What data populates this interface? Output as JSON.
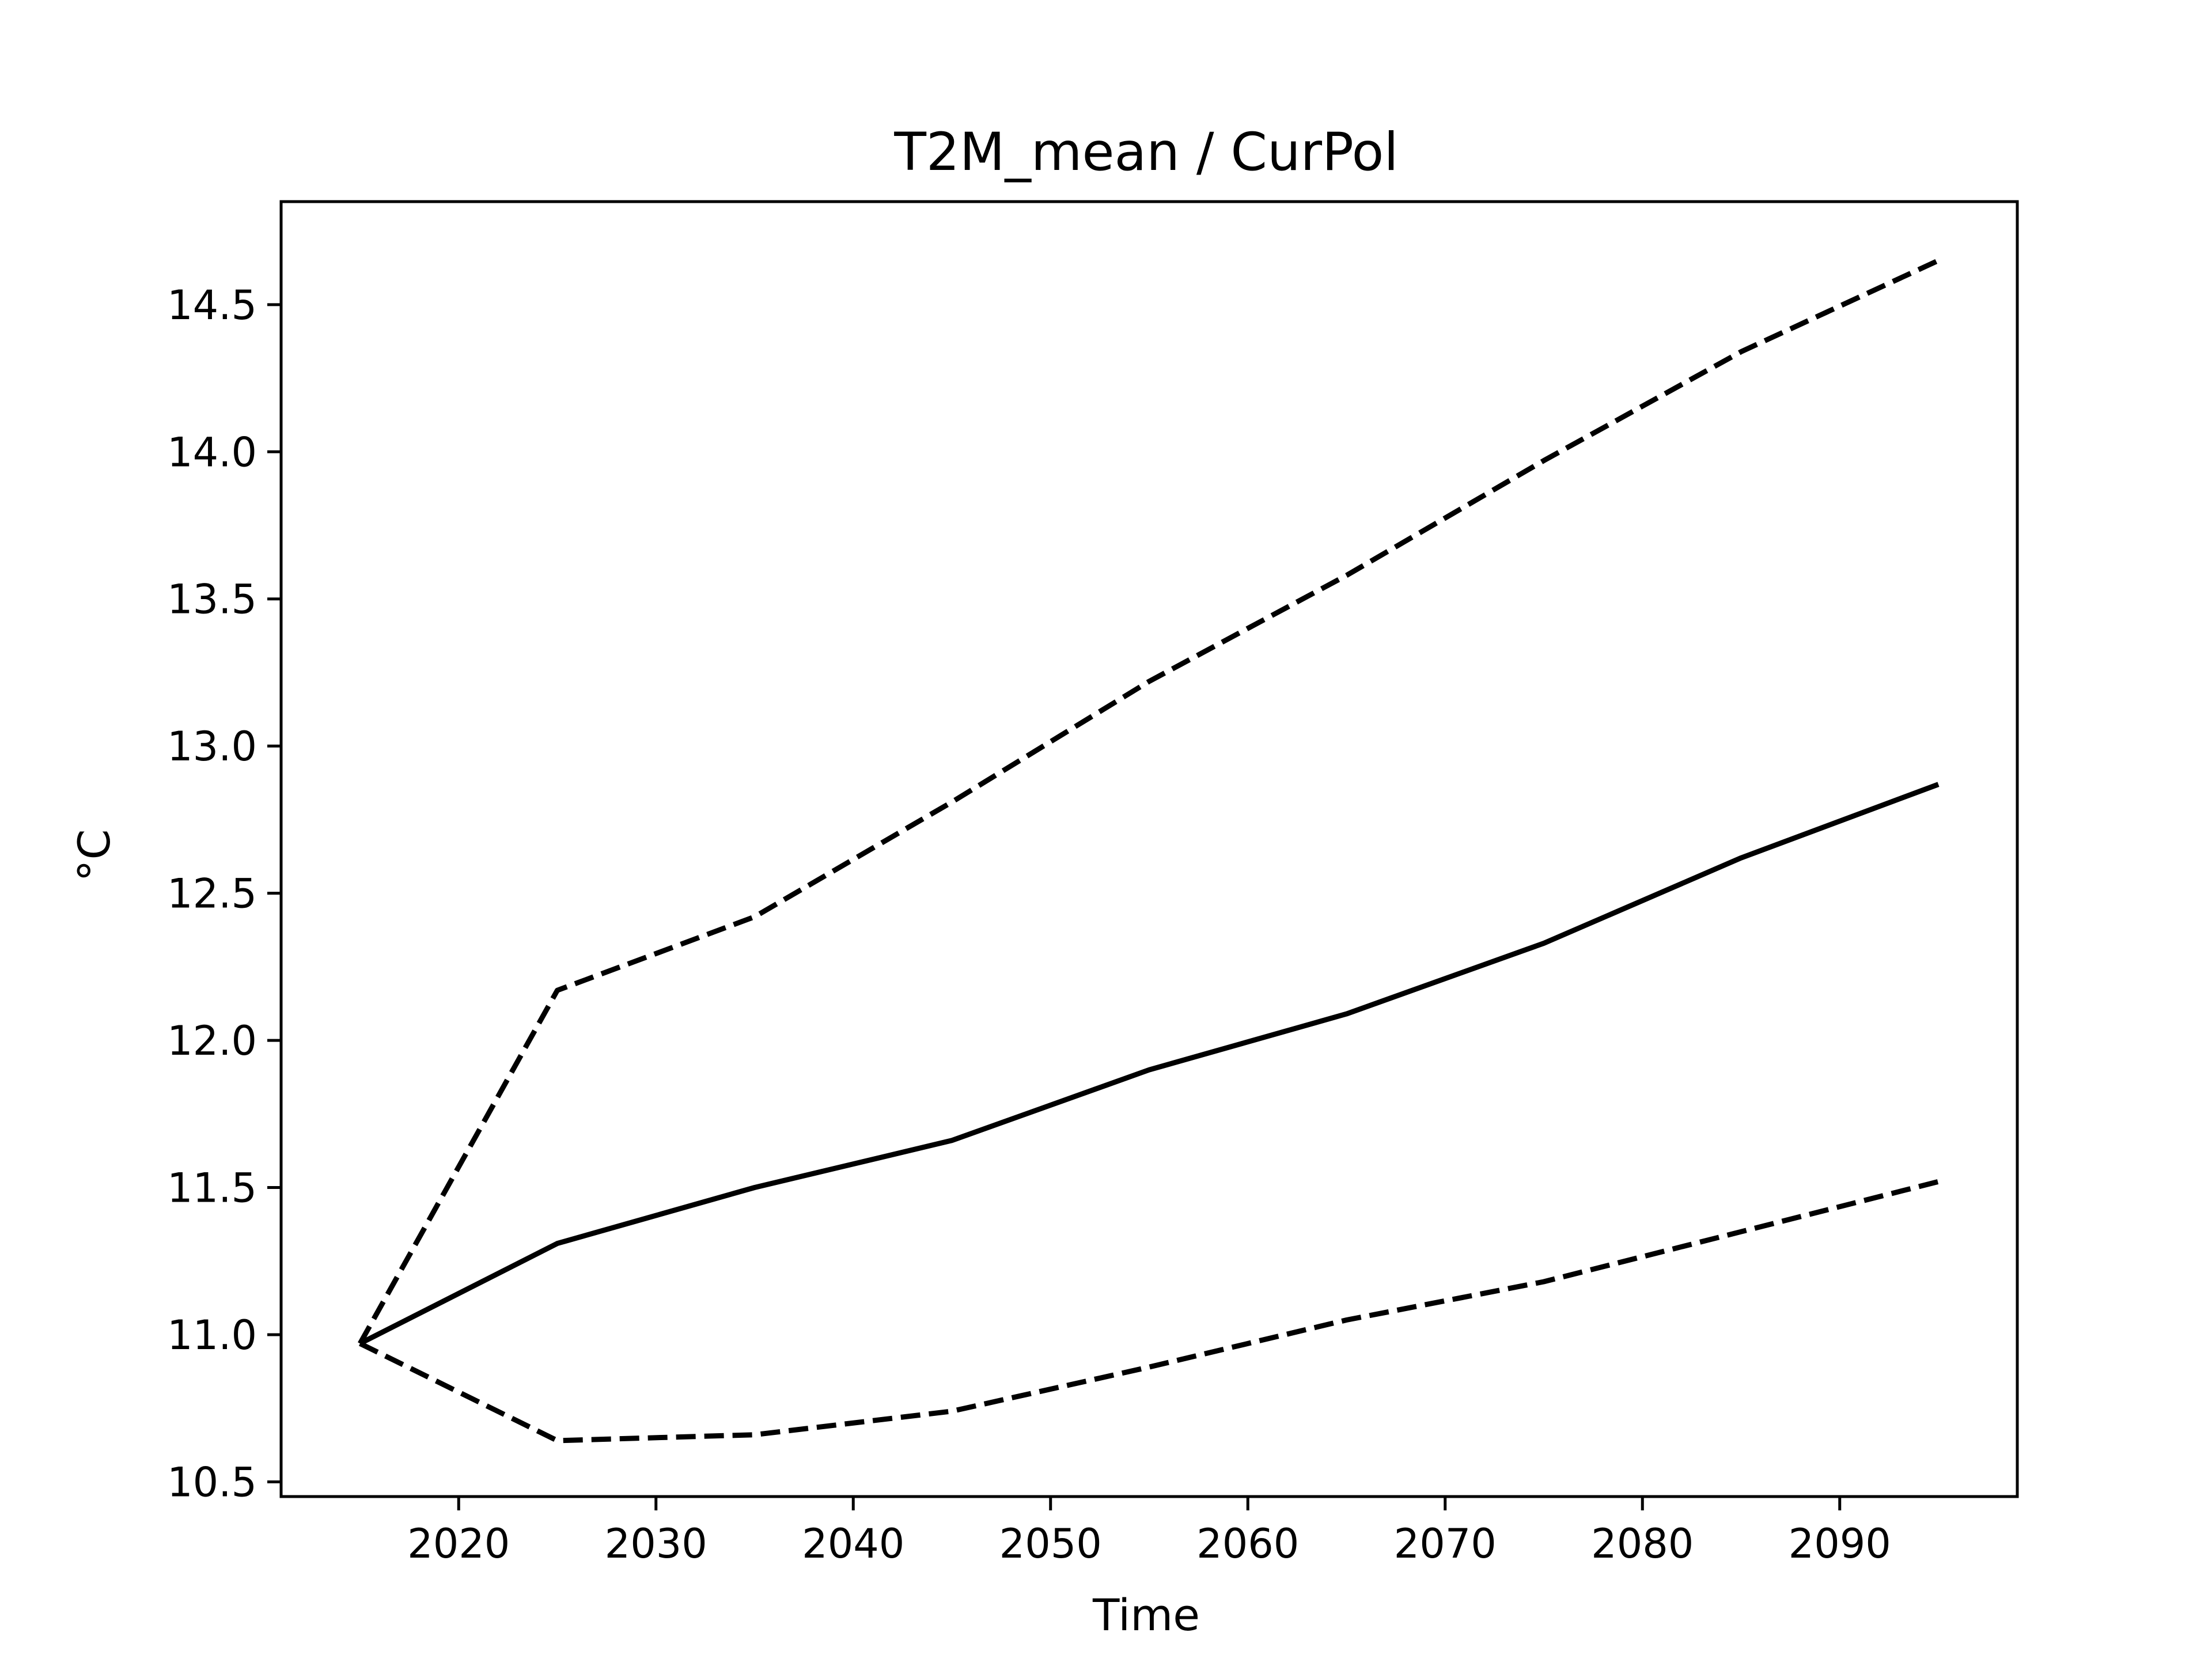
{
  "chart_data": {
    "type": "line",
    "title": "T2M_mean / CurPol",
    "xlabel": "Time",
    "ylabel": "°C",
    "xlim": [
      2011,
      2099
    ],
    "ylim": [
      10.45,
      14.85
    ],
    "xticks": [
      2020,
      2030,
      2040,
      2050,
      2060,
      2070,
      2080,
      2090
    ],
    "xtick_labels": [
      "2020",
      "2030",
      "2040",
      "2050",
      "2060",
      "2070",
      "2080",
      "2090"
    ],
    "yticks": [
      10.5,
      11.0,
      11.5,
      12.0,
      12.5,
      13.0,
      13.5,
      14.0,
      14.5
    ],
    "ytick_labels": [
      "10.5",
      "11.0",
      "11.5",
      "12.0",
      "12.5",
      "13.0",
      "13.5",
      "14.0",
      "14.5"
    ],
    "grid": false,
    "legend": false,
    "x": [
      2015,
      2025,
      2035,
      2045,
      2055,
      2065,
      2075,
      2085,
      2095
    ],
    "series": [
      {
        "style": "solid",
        "color": "#000000",
        "values": [
          10.97,
          11.31,
          11.5,
          11.66,
          11.9,
          12.09,
          12.33,
          12.62,
          12.87
        ]
      },
      {
        "style": "dashed",
        "color": "#000000",
        "values": [
          10.97,
          12.17,
          12.42,
          12.81,
          13.22,
          13.58,
          13.97,
          14.34,
          14.65
        ]
      },
      {
        "style": "dashed",
        "color": "#000000",
        "values": [
          10.97,
          10.64,
          10.66,
          10.74,
          10.89,
          11.05,
          11.18,
          11.35,
          11.52
        ]
      }
    ]
  }
}
